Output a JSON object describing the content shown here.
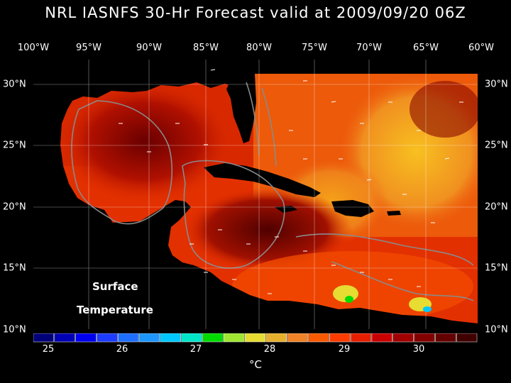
{
  "title": "NRL IASNFS  30-Hr Forecast valid at 2009/09/20 06Z",
  "lon_labels": [
    "100°W",
    "95°W",
    "90°W",
    "85°W",
    "80°W",
    "75°W",
    "70°W",
    "65°W",
    "60°W"
  ],
  "lat_labels": [
    "30°N",
    "25°N",
    "20°N",
    "15°N",
    "10°N"
  ],
  "map_label_line1": "Surface",
  "map_label_line2": "Temperature",
  "colorbar": {
    "tick_labels": [
      "25",
      "26",
      "27",
      "28",
      "29",
      "30"
    ],
    "unit": "°C",
    "colors": [
      "#000078",
      "#0000b4",
      "#0000f0",
      "#1e3cff",
      "#1e6eff",
      "#1e96ff",
      "#00c8ff",
      "#00e6c8",
      "#00dc00",
      "#a0e632",
      "#e6dc32",
      "#e6af2d",
      "#f08228",
      "#fa5a00",
      "#ff3c00",
      "#e61e00",
      "#c80000",
      "#a00000",
      "#820000",
      "#640000",
      "#400000"
    ]
  },
  "colors": {
    "background": "#000000",
    "warm_sea": "#e23000",
    "hot_sea": "#7a0000",
    "cool_sea": "#f0a020",
    "land": "#000000",
    "grid": "#ffffff",
    "isobath": "#8a8a8a"
  }
}
